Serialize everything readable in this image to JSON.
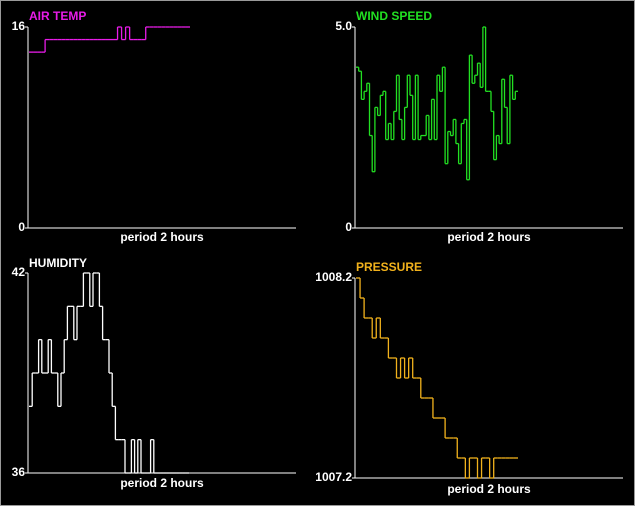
{
  "chart_data": [
    {
      "type": "line",
      "title": "AIR TEMP",
      "xlabel": "period 2 hours",
      "color": "#e81ce8",
      "ylim": [
        0,
        16
      ],
      "yticks": [
        0,
        16
      ],
      "values": [
        14,
        14,
        14,
        14,
        15,
        15,
        15,
        15,
        15,
        15,
        15,
        15,
        15,
        15,
        15,
        15,
        15,
        15,
        15,
        15,
        15,
        15,
        16,
        15,
        16,
        15,
        15,
        15,
        15,
        16,
        16,
        16,
        16,
        16,
        16,
        16,
        16,
        16,
        16,
        16
      ]
    },
    {
      "type": "line",
      "title": "WIND SPEED",
      "xlabel": "period 2 hours",
      "color": "#22e022",
      "ylim": [
        0,
        5
      ],
      "yticks": [
        0,
        {
          "value": 5,
          "label": "5.0"
        }
      ],
      "values": [
        4.0,
        3.9,
        3.2,
        3.4,
        3.6,
        2.3,
        1.4,
        3.0,
        2.8,
        3.3,
        3.4,
        2.2,
        2.6,
        2.2,
        2.9,
        3.8,
        2.7,
        2.2,
        3.0,
        3.8,
        3.3,
        2.2,
        3.8,
        2.2,
        2.3,
        2.3,
        2.8,
        2.2,
        3.2,
        2.2,
        3.8,
        3.4,
        4.0,
        1.6,
        2.4,
        2.3,
        2.7,
        2.1,
        1.6,
        2.6,
        2.7,
        1.2,
        4.3,
        3.6,
        3.8,
        4.1,
        3.5,
        5.0,
        3.4,
        3.4,
        2.9,
        1.7,
        2.3,
        2.1,
        3.7,
        3.0,
        2.1,
        3.8,
        3.2,
        3.4
      ]
    },
    {
      "type": "line",
      "title": "HUMIDITY",
      "xlabel": "period 2 hours",
      "color": "#ffffff",
      "ylim": [
        36,
        42
      ],
      "yticks": [
        36,
        42
      ],
      "values": [
        38,
        39,
        39,
        40,
        39,
        39,
        40,
        39,
        39,
        38,
        39,
        40,
        41,
        41,
        40,
        41,
        41,
        42,
        42,
        41,
        42,
        42,
        41,
        40,
        40,
        39,
        38,
        37,
        37,
        37,
        36,
        36,
        37,
        36,
        37,
        36,
        36,
        36,
        37,
        36,
        36,
        36,
        36,
        36,
        36,
        36,
        36,
        36,
        36,
        36
      ]
    },
    {
      "type": "line",
      "title": "PRESSURE",
      "xlabel": "period 2 hours",
      "color": "#f2b21c",
      "ylim": [
        1007.2,
        1008.2
      ],
      "yticks": [
        1007.2,
        1008.2
      ],
      "values": [
        1008.2,
        1008.1,
        1008.0,
        1008.0,
        1007.9,
        1008.0,
        1007.9,
        1007.9,
        1007.8,
        1007.8,
        1007.7,
        1007.8,
        1007.7,
        1007.8,
        1007.7,
        1007.7,
        1007.6,
        1007.6,
        1007.6,
        1007.5,
        1007.5,
        1007.5,
        1007.4,
        1007.4,
        1007.4,
        1007.3,
        1007.3,
        1007.2,
        1007.3,
        1007.3,
        1007.2,
        1007.3,
        1007.3,
        1007.2,
        1007.3,
        1007.3,
        1007.3,
        1007.3,
        1007.3,
        1007.3
      ]
    }
  ]
}
